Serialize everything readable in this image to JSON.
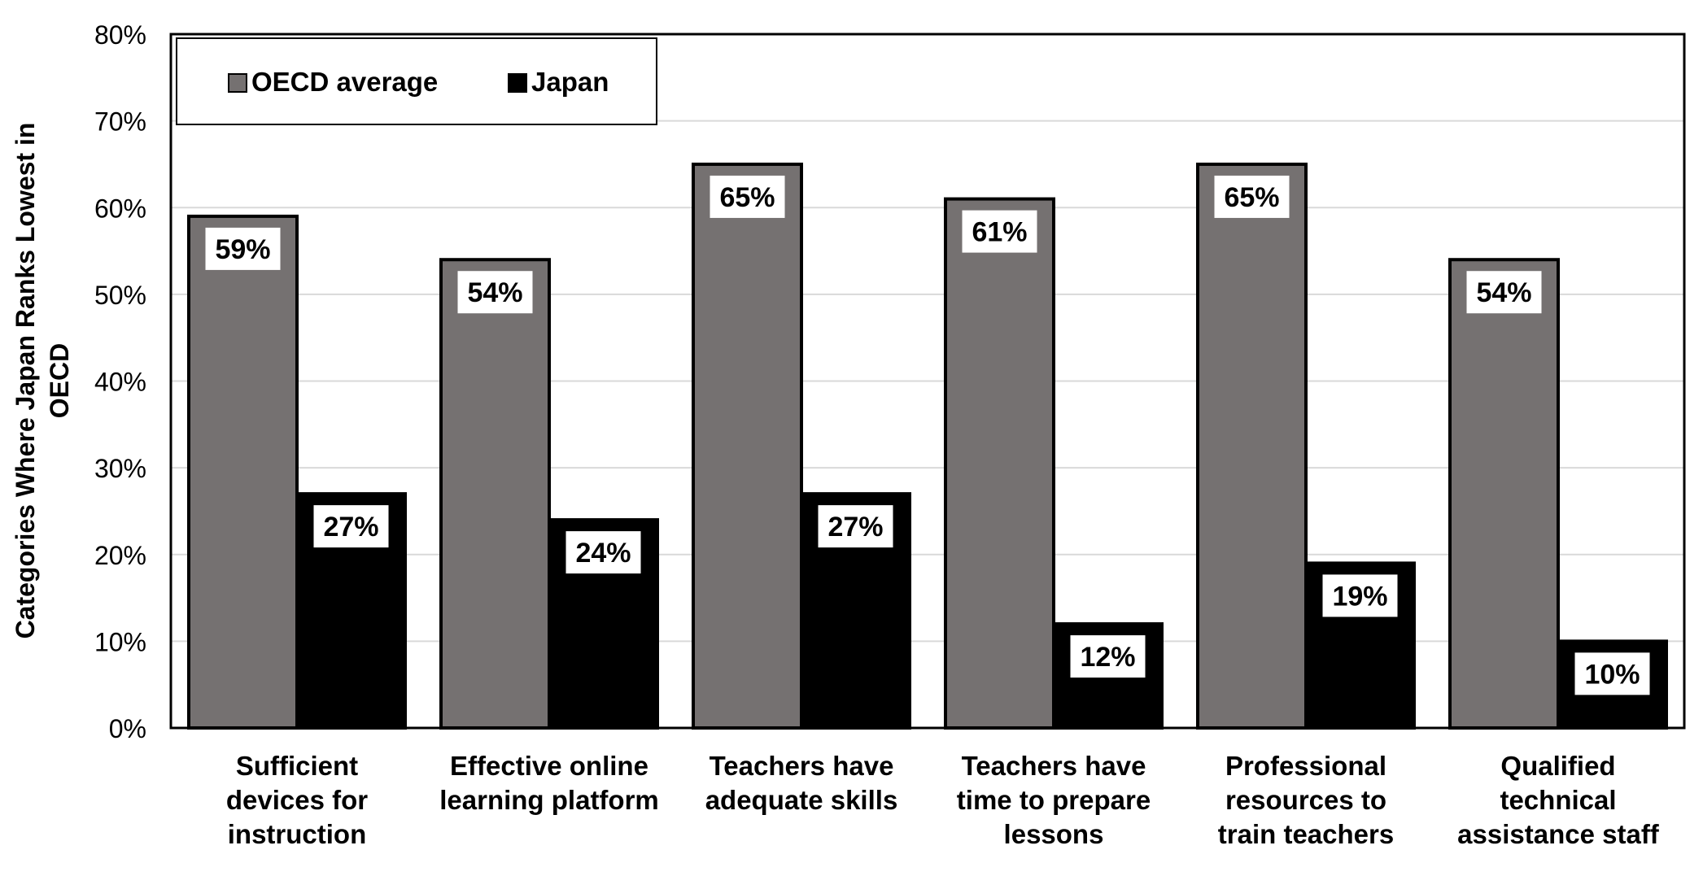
{
  "chart_data": {
    "type": "bar",
    "title": "",
    "xlabel": "",
    "ylabel": "Categories Where Japan Ranks Lowest in OECD",
    "ylabel_lines": [
      "Categories Where Japan Ranks Lowest in",
      "OECD"
    ],
    "ylim": [
      0,
      80
    ],
    "yticks": [
      0,
      10,
      20,
      30,
      40,
      50,
      60,
      70,
      80
    ],
    "ytick_labels": [
      "0%",
      "10%",
      "20%",
      "30%",
      "40%",
      "50%",
      "60%",
      "70%",
      "80%"
    ],
    "grid": true,
    "legend_position": "top-left",
    "categories": [
      "Sufficient devices for instruction",
      "Effective online learning platform",
      "Teachers have adequate skills",
      "Teachers have time to prepare lessons",
      "Professional resources to train teachers",
      "Qualified technical assistance staff"
    ],
    "category_lines": [
      [
        "Sufficient",
        "devices for",
        "instruction"
      ],
      [
        "Effective online",
        "learning platform"
      ],
      [
        "Teachers have",
        "adequate skills"
      ],
      [
        "Teachers have",
        "time to prepare",
        "lessons"
      ],
      [
        "Professional",
        "resources to",
        "train teachers"
      ],
      [
        "Qualified",
        "technical",
        "assistance staff"
      ]
    ],
    "series": [
      {
        "name": "OECD average",
        "color": "#757171",
        "values": [
          59,
          54,
          65,
          61,
          65,
          54
        ],
        "labels": [
          "59%",
          "54%",
          "65%",
          "61%",
          "65%",
          "54%"
        ]
      },
      {
        "name": "Japan",
        "color": "#000000",
        "values": [
          27,
          24,
          27,
          12,
          19,
          10
        ],
        "labels": [
          "27%",
          "24%",
          "27%",
          "12%",
          "19%",
          "10%"
        ]
      }
    ]
  }
}
